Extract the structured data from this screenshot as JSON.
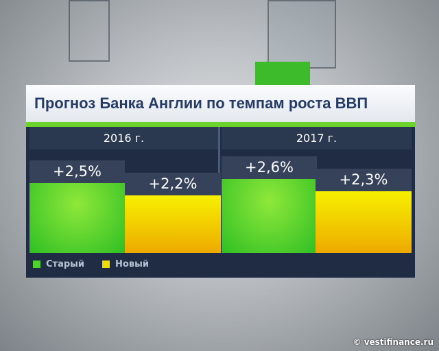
{
  "chart_data": {
    "type": "bar",
    "title": "Прогноз Банка Англии по темпам роста ВВП",
    "categories": [
      "2016 г.",
      "2017 г."
    ],
    "series": [
      {
        "name": "Старый",
        "color": "#4fd12c",
        "values": [
          2.5,
          2.6
        ],
        "labels": [
          "+2,5%",
          "+2,6%"
        ]
      },
      {
        "name": "Новый",
        "color": "#f2dc00",
        "values": [
          2.2,
          2.3
        ],
        "labels": [
          "+2,2%",
          "+2,3%"
        ]
      }
    ],
    "xlabel": "",
    "ylabel": "",
    "legend": "bottom-left"
  },
  "footer": {
    "copyright": "© vestifinance.ru"
  }
}
